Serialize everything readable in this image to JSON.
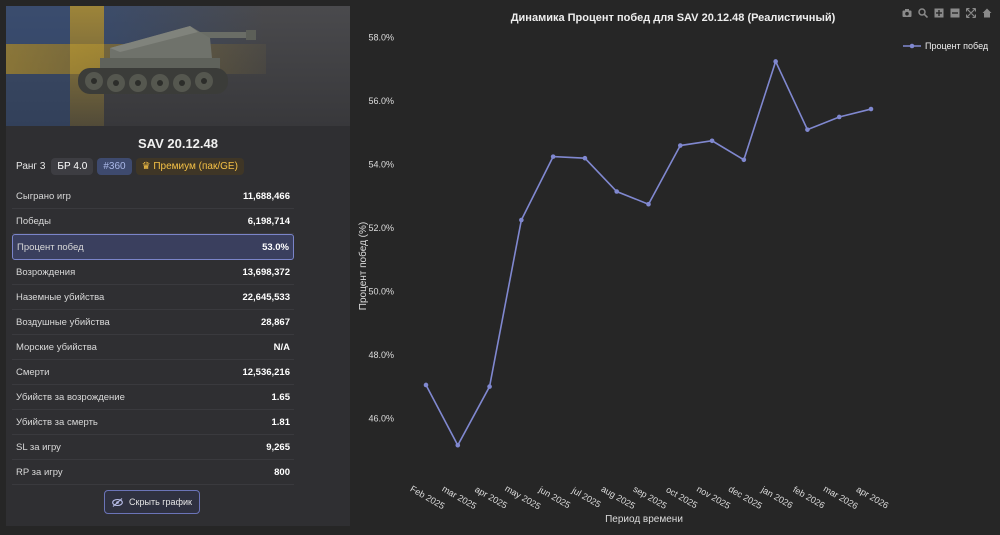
{
  "vehicle": {
    "name": "SAV 20.12.48",
    "rank": "Ранг 3",
    "br": "БР 4.0",
    "id": "#360",
    "premium": "Премиум (пак/GE)"
  },
  "stats": [
    {
      "label": "Сыграно игр",
      "value": "11,688,466",
      "highlight": false
    },
    {
      "label": "Победы",
      "value": "6,198,714",
      "highlight": false
    },
    {
      "label": "Процент побед",
      "value": "53.0%",
      "highlight": true
    },
    {
      "label": "Возрождения",
      "value": "13,698,372",
      "highlight": false
    },
    {
      "label": "Наземные убийства",
      "value": "22,645,533",
      "highlight": false
    },
    {
      "label": "Воздушные убийства",
      "value": "28,867",
      "highlight": false
    },
    {
      "label": "Морские убийства",
      "value": "N/A",
      "highlight": false
    },
    {
      "label": "Смерти",
      "value": "12,536,216",
      "highlight": false
    },
    {
      "label": "Убийств за возрождение",
      "value": "1.65",
      "highlight": false
    },
    {
      "label": "Убийств за смерть",
      "value": "1.81",
      "highlight": false
    },
    {
      "label": "SL за игру",
      "value": "9,265",
      "highlight": false
    },
    {
      "label": "RP за игру",
      "value": "800",
      "highlight": false
    }
  ],
  "hide_button_label": "Скрыть график",
  "toolbar_icons": [
    "camera-icon",
    "zoom-icon",
    "zoom-in-icon",
    "zoom-out-icon",
    "autoscale-icon",
    "home-icon"
  ],
  "colors": {
    "accent": "#7a84c9",
    "line": "#8088d0",
    "premium": "#f5c146"
  },
  "chart_data": {
    "type": "line",
    "title": "Динамика Процент побед для SAV 20.12.48 (Реалистичный)",
    "xlabel": "Период времени",
    "ylabel": "Процент побед (%)",
    "categories": [
      "Feb 2025",
      "mar 2025",
      "apr 2025",
      "may 2025",
      "jun 2025",
      "jul 2025",
      "aug 2025",
      "sep 2025",
      "oct 2025",
      "nov 2025",
      "dec 2025",
      "jan 2026",
      "feb 2026",
      "mar 2026",
      "apr 2026"
    ],
    "series": [
      {
        "name": "Процент побед",
        "values": [
          47.05,
          45.15,
          47.0,
          52.25,
          54.25,
          54.2,
          53.15,
          52.75,
          54.6,
          54.75,
          54.15,
          57.25,
          55.1,
          55.5,
          55.75
        ]
      }
    ],
    "ylim": [
      45.0,
      58.4
    ],
    "yticks": [
      46,
      48,
      50,
      52,
      54,
      56,
      58
    ],
    "ytick_labels": [
      "46.0%",
      "48.0%",
      "50.0%",
      "52.0%",
      "54.0%",
      "56.0%",
      "58.0%"
    ],
    "grid": false,
    "legend": "top-right"
  }
}
